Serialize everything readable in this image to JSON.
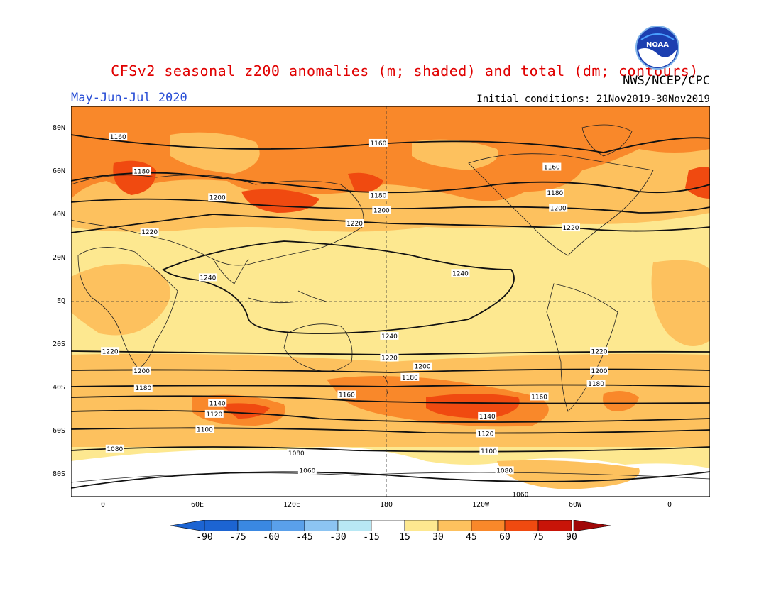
{
  "title": "CFSv2 seasonal z200 anomalies (m; shaded) and total (dm; contours)",
  "agency": "NWS/NCEP/CPC",
  "season": "May-Jun-Jul 2020",
  "initial_conditions": "Initial conditions: 21Nov2019-30Nov2019",
  "logo_text": "NOAA",
  "lat_labels": [
    "80N",
    "60N",
    "40N",
    "20N",
    "EQ",
    "20S",
    "40S",
    "60S",
    "80S"
  ],
  "lon_labels": [
    "0",
    "60E",
    "120E",
    "180",
    "120W",
    "60W",
    "0"
  ],
  "colorbar": {
    "labels": [
      "-90",
      "-75",
      "-60",
      "-45",
      "-30",
      "-15",
      "15",
      "30",
      "45",
      "60",
      "75",
      "90"
    ],
    "colors": [
      "#1c64d2",
      "#3a88e2",
      "#5aa0ea",
      "#8cc4f2",
      "#b8e8f4",
      "#ffffff",
      "#fde890",
      "#fdc15e",
      "#f9882a",
      "#f04a10",
      "#c81408"
    ],
    "arrow_low_color": "#1c64d2",
    "arrow_high_color": "#a00808"
  },
  "contour_labels": [
    {
      "text": "1160",
      "lon": 10,
      "lat": 76
    },
    {
      "text": "1160",
      "lon": 175,
      "lat": 73
    },
    {
      "text": "1160",
      "lon": 285,
      "lat": 62
    },
    {
      "text": "1180",
      "lon": 25,
      "lat": 60
    },
    {
      "text": "1180",
      "lon": 175,
      "lat": 49
    },
    {
      "text": "1180",
      "lon": 287,
      "lat": 50
    },
    {
      "text": "1200",
      "lon": 73,
      "lat": 48
    },
    {
      "text": "1200",
      "lon": 177,
      "lat": 42
    },
    {
      "text": "1200",
      "lon": 289,
      "lat": 43
    },
    {
      "text": "1220",
      "lon": 30,
      "lat": 32
    },
    {
      "text": "1220",
      "lon": 160,
      "lat": 36
    },
    {
      "text": "1220",
      "lon": 297,
      "lat": 34
    },
    {
      "text": "1240",
      "lon": 67,
      "lat": 11
    },
    {
      "text": "1240",
      "lon": 227,
      "lat": 13
    },
    {
      "text": "1240",
      "lon": 182,
      "lat": -16
    },
    {
      "text": "1220",
      "lon": 5,
      "lat": -23
    },
    {
      "text": "1220",
      "lon": 182,
      "lat": -26
    },
    {
      "text": "1220",
      "lon": 315,
      "lat": -23
    },
    {
      "text": "1200",
      "lon": 25,
      "lat": -32
    },
    {
      "text": "1200",
      "lon": 203,
      "lat": -30
    },
    {
      "text": "1200",
      "lon": 315,
      "lat": -32
    },
    {
      "text": "1180",
      "lon": 26,
      "lat": -40
    },
    {
      "text": "1180",
      "lon": 195,
      "lat": -35
    },
    {
      "text": "1180",
      "lon": 313,
      "lat": -38
    },
    {
      "text": "1160",
      "lon": 155,
      "lat": -43
    },
    {
      "text": "1160",
      "lon": 277,
      "lat": -44
    },
    {
      "text": "1140",
      "lon": 73,
      "lat": -47
    },
    {
      "text": "1140",
      "lon": 244,
      "lat": -53
    },
    {
      "text": "1120",
      "lon": 71,
      "lat": -52
    },
    {
      "text": "1120",
      "lon": 243,
      "lat": -61
    },
    {
      "text": "1100",
      "lon": 65,
      "lat": -59
    },
    {
      "text": "1100",
      "lon": 245,
      "lat": -69
    },
    {
      "text": "1080",
      "lon": 8,
      "lat": -68
    },
    {
      "text": "1080",
      "lon": 123,
      "lat": -70
    },
    {
      "text": "1080",
      "lon": 255,
      "lat": -78
    },
    {
      "text": "1060",
      "lon": 130,
      "lat": -78
    },
    {
      "text": "1060",
      "lon": 265,
      "lat": -89
    }
  ]
}
